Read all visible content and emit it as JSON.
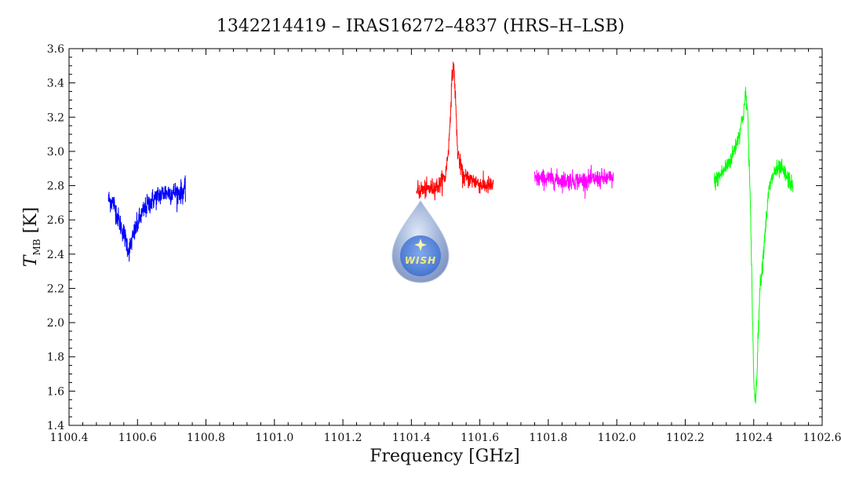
{
  "chart_data": {
    "type": "line",
    "title": "1342214419 – IRAS16272–4837 (HRS–H–LSB)",
    "xlabel": "Frequency [GHz]",
    "ylabel": {
      "main": "T",
      "sub": "MB",
      "unit": "[K]"
    },
    "xlim": [
      1100.4,
      1102.6
    ],
    "ylim": [
      1.4,
      3.6
    ],
    "xticks": [
      "1100.4",
      "1100.6",
      "1100.8",
      "1101.0",
      "1101.2",
      "1101.4",
      "1101.6",
      "1101.8",
      "1102.0",
      "1102.2",
      "1102.4",
      "1102.6"
    ],
    "yticks": [
      "1.4",
      "1.6",
      "1.8",
      "2.0",
      "2.2",
      "2.4",
      "2.6",
      "2.8",
      "3.0",
      "3.2",
      "3.4",
      "3.6"
    ],
    "grid": false,
    "series": [
      {
        "color": "#0000ff",
        "x_range": [
          1100.515,
          1100.74
        ],
        "noise": 0.055,
        "profile": [
          [
            1100.515,
            2.72
          ],
          [
            1100.53,
            2.7
          ],
          [
            1100.545,
            2.6
          ],
          [
            1100.56,
            2.52
          ],
          [
            1100.575,
            2.42
          ],
          [
            1100.59,
            2.52
          ],
          [
            1100.605,
            2.6
          ],
          [
            1100.62,
            2.66
          ],
          [
            1100.64,
            2.71
          ],
          [
            1100.66,
            2.74
          ],
          [
            1100.68,
            2.76
          ],
          [
            1100.7,
            2.76
          ],
          [
            1100.72,
            2.76
          ],
          [
            1100.74,
            2.77
          ]
        ]
      },
      {
        "color": "#ff0000",
        "x_range": [
          1101.415,
          1101.64
        ],
        "noise": 0.045,
        "profile": [
          [
            1101.415,
            2.77
          ],
          [
            1101.45,
            2.78
          ],
          [
            1101.48,
            2.8
          ],
          [
            1101.5,
            2.86
          ],
          [
            1101.51,
            3.05
          ],
          [
            1101.518,
            3.4
          ],
          [
            1101.523,
            3.52
          ],
          [
            1101.528,
            3.35
          ],
          [
            1101.535,
            3.0
          ],
          [
            1101.55,
            2.85
          ],
          [
            1101.58,
            2.83
          ],
          [
            1101.61,
            2.8
          ],
          [
            1101.64,
            2.8
          ]
        ]
      },
      {
        "color": "#ff00ff",
        "x_range": [
          1101.76,
          1101.99
        ],
        "noise": 0.045,
        "profile": [
          [
            1101.76,
            2.84
          ],
          [
            1101.8,
            2.84
          ],
          [
            1101.85,
            2.83
          ],
          [
            1101.9,
            2.83
          ],
          [
            1101.95,
            2.84
          ],
          [
            1101.99,
            2.84
          ]
        ]
      },
      {
        "color": "#00ff00",
        "x_range": [
          1102.285,
          1102.515
        ],
        "noise": 0.045,
        "profile": [
          [
            1102.285,
            2.82
          ],
          [
            1102.31,
            2.88
          ],
          [
            1102.335,
            2.96
          ],
          [
            1102.355,
            3.08
          ],
          [
            1102.37,
            3.22
          ],
          [
            1102.377,
            3.34
          ],
          [
            1102.383,
            3.2
          ],
          [
            1102.39,
            2.7
          ],
          [
            1102.396,
            2.1
          ],
          [
            1102.401,
            1.6
          ],
          [
            1102.406,
            1.55
          ],
          [
            1102.411,
            1.8
          ],
          [
            1102.418,
            2.2
          ],
          [
            1102.426,
            2.35
          ],
          [
            1102.434,
            2.55
          ],
          [
            1102.445,
            2.78
          ],
          [
            1102.46,
            2.88
          ],
          [
            1102.48,
            2.9
          ],
          [
            1102.5,
            2.84
          ],
          [
            1102.515,
            2.8
          ]
        ]
      }
    ],
    "logo": {
      "text": "WISH",
      "icon": "star-icon"
    }
  }
}
